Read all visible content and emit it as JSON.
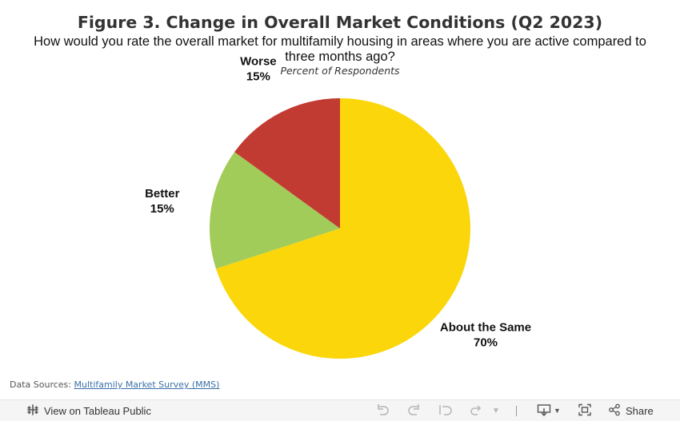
{
  "header": {
    "title": "Figure 3. Change in Overall Market Conditions (Q2 2023)",
    "subtitle": "How would you rate the overall market for multifamily housing in areas where you are active compared to three months ago?",
    "caption": "Percent of Respondents"
  },
  "chart_data": {
    "type": "pie",
    "title": "Figure 3. Change in Overall Market Conditions (Q2 2023)",
    "subtitle": "How would you rate the overall market for multifamily housing in areas where you are active compared to three months ago?",
    "unit_label": "Percent of Respondents",
    "slices": [
      {
        "label": "About the Same",
        "value": 70,
        "display": "70%",
        "color": "#FAD60A"
      },
      {
        "label": "Better",
        "value": 15,
        "display": "15%",
        "color": "#A2CC5A"
      },
      {
        "label": "Worse",
        "value": 15,
        "display": "15%",
        "color": "#C23B33"
      }
    ],
    "start": "12 o'clock",
    "direction": "clockwise",
    "legend": "none"
  },
  "footer": {
    "source_prefix": "Data Sources:",
    "source_link": "Multifamily Market Survey (MMS)"
  },
  "toolbar": {
    "view_label": "View on Tableau Public",
    "share_label": "Share",
    "icons": {
      "tableau": "tableau-logo-icon",
      "undo": "undo-icon",
      "redo": "redo-icon",
      "revert": "revert-icon",
      "refresh": "refresh-icon",
      "dropdown": "chevron-down-icon",
      "download": "download-icon",
      "fullscreen": "fullscreen-icon",
      "share": "share-icon"
    }
  }
}
